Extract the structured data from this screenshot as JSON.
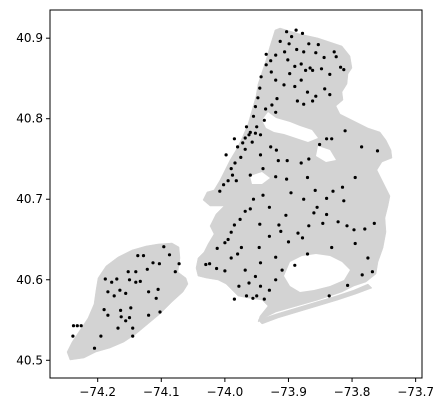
{
  "colors": {
    "land": "#d3d3d3",
    "water": "#ffffff",
    "point": "#000000",
    "frame": "#000000",
    "background": "#ffffff"
  },
  "chart_data": {
    "type": "scatter",
    "title": "",
    "xlabel": "",
    "ylabel": "",
    "xlim": [
      -74.275,
      -73.69
    ],
    "ylim": [
      40.478,
      40.935
    ],
    "grid": false,
    "legend": "none",
    "x_ticks": [
      {
        "value": -74.2,
        "label": "−74.2"
      },
      {
        "value": -74.1,
        "label": "−74.1"
      },
      {
        "value": -74.0,
        "label": "−74.0"
      },
      {
        "value": -73.9,
        "label": "−73.9"
      },
      {
        "value": -73.8,
        "label": "−73.8"
      },
      {
        "value": -73.7,
        "label": "−73.7"
      }
    ],
    "y_ticks": [
      {
        "value": 40.5,
        "label": "40.5"
      },
      {
        "value": 40.6,
        "label": "40.6"
      },
      {
        "value": 40.7,
        "label": "40.7"
      },
      {
        "value": 40.8,
        "label": "40.8"
      },
      {
        "value": 40.9,
        "label": "40.9"
      }
    ],
    "points": [
      [
        -74.238,
        40.543
      ],
      [
        -74.232,
        40.543
      ],
      [
        -74.226,
        40.543
      ],
      [
        -74.239,
        40.53
      ],
      [
        -74.205,
        40.515
      ],
      [
        -74.188,
        40.601
      ],
      [
        -74.178,
        40.597
      ],
      [
        -74.17,
        40.601
      ],
      [
        -74.152,
        40.61
      ],
      [
        -74.14,
        40.61
      ],
      [
        -74.137,
        40.63
      ],
      [
        -74.128,
        40.63
      ],
      [
        -74.122,
        40.613
      ],
      [
        -74.113,
        40.621
      ],
      [
        -74.103,
        40.62
      ],
      [
        -74.096,
        40.641
      ],
      [
        -74.087,
        40.631
      ],
      [
        -74.078,
        40.61
      ],
      [
        -74.072,
        40.62
      ],
      [
        -74.15,
        40.6
      ],
      [
        -74.165,
        40.587
      ],
      [
        -74.156,
        40.583
      ],
      [
        -74.14,
        40.597
      ],
      [
        -74.133,
        40.598
      ],
      [
        -74.12,
        40.585
      ],
      [
        -74.108,
        40.577
      ],
      [
        -74.105,
        40.588
      ],
      [
        -74.184,
        40.585
      ],
      [
        -74.174,
        40.58
      ],
      [
        -74.164,
        40.562
      ],
      [
        -74.184,
        40.556
      ],
      [
        -74.156,
        40.549
      ],
      [
        -74.15,
        40.553
      ],
      [
        -74.145,
        40.54
      ],
      [
        -74.145,
        40.53
      ],
      [
        -74.168,
        40.54
      ],
      [
        -74.148,
        40.565
      ],
      [
        -74.19,
        40.563
      ],
      [
        -74.195,
        40.53
      ],
      [
        -74.12,
        40.556
      ],
      [
        -74.102,
        40.56
      ],
      [
        -74.163,
        40.554
      ],
      [
        -73.903,
        40.908
      ],
      [
        -73.895,
        40.902
      ],
      [
        -73.888,
        40.91
      ],
      [
        -73.878,
        40.906
      ],
      [
        -73.868,
        40.893
      ],
      [
        -73.876,
        40.883
      ],
      [
        -73.887,
        40.886
      ],
      [
        -73.899,
        40.893
      ],
      [
        -73.913,
        40.896
      ],
      [
        -73.906,
        40.883
      ],
      [
        -73.901,
        40.873
      ],
      [
        -73.89,
        40.865
      ],
      [
        -73.88,
        40.868
      ],
      [
        -73.866,
        40.863
      ],
      [
        -73.857,
        40.882
      ],
      [
        -73.853,
        40.892
      ],
      [
        -73.844,
        40.876
      ],
      [
        -73.828,
        40.883
      ],
      [
        -73.825,
        40.877
      ],
      [
        -73.818,
        40.864
      ],
      [
        -73.813,
        40.861
      ],
      [
        -73.835,
        40.855
      ],
      [
        -73.848,
        40.862
      ],
      [
        -73.862,
        40.86
      ],
      [
        -73.873,
        40.86
      ],
      [
        -73.88,
        40.848
      ],
      [
        -73.898,
        40.856
      ],
      [
        -73.89,
        40.84
      ],
      [
        -73.87,
        40.833
      ],
      [
        -73.857,
        40.828
      ],
      [
        -73.843,
        40.837
      ],
      [
        -73.835,
        40.83
      ],
      [
        -73.862,
        40.822
      ],
      [
        -73.876,
        40.818
      ],
      [
        -73.886,
        40.822
      ],
      [
        -73.907,
        40.842
      ],
      [
        -73.92,
        40.848
      ],
      [
        -73.927,
        40.858
      ],
      [
        -73.935,
        40.867
      ],
      [
        -73.928,
        40.872
      ],
      [
        -73.92,
        40.879
      ],
      [
        -73.935,
        40.88
      ],
      [
        -73.943,
        40.852
      ],
      [
        -73.945,
        40.838
      ],
      [
        -73.948,
        40.826
      ],
      [
        -73.952,
        40.815
      ],
      [
        -73.955,
        40.803
      ],
      [
        -73.95,
        40.79
      ],
      [
        -73.952,
        40.782
      ],
      [
        -73.96,
        40.783
      ],
      [
        -73.944,
        40.78
      ],
      [
        -73.938,
        40.798
      ],
      [
        -73.936,
        40.812
      ],
      [
        -73.926,
        40.817
      ],
      [
        -73.92,
        40.808
      ],
      [
        -73.918,
        40.825
      ],
      [
        -73.962,
        40.78
      ],
      [
        -73.968,
        40.776
      ],
      [
        -73.972,
        40.77
      ],
      [
        -73.98,
        40.765
      ],
      [
        -73.975,
        40.752
      ],
      [
        -73.984,
        40.745
      ],
      [
        -73.99,
        40.738
      ],
      [
        -73.988,
        40.73
      ],
      [
        -73.995,
        40.723
      ],
      [
        -74.002,
        40.718
      ],
      [
        -74.008,
        40.71
      ],
      [
        -73.998,
        40.755
      ],
      [
        -73.985,
        40.775
      ],
      [
        -73.966,
        40.79
      ],
      [
        -73.957,
        40.771
      ],
      [
        -73.968,
        40.762
      ],
      [
        -73.944,
        40.755
      ],
      [
        -73.928,
        40.765
      ],
      [
        -73.919,
        40.761
      ],
      [
        -73.916,
        40.748
      ],
      [
        -73.902,
        40.748
      ],
      [
        -73.88,
        40.745
      ],
      [
        -73.868,
        40.75
      ],
      [
        -73.851,
        40.768
      ],
      [
        -73.84,
        40.775
      ],
      [
        -73.832,
        40.775
      ],
      [
        -73.811,
        40.785
      ],
      [
        -73.785,
        40.765
      ],
      [
        -73.76,
        40.76
      ],
      [
        -73.795,
        40.727
      ],
      [
        -73.815,
        40.715
      ],
      [
        -73.83,
        40.71
      ],
      [
        -73.858,
        40.711
      ],
      [
        -73.87,
        40.727
      ],
      [
        -73.903,
        40.725
      ],
      [
        -73.92,
        40.728
      ],
      [
        -73.94,
        40.705
      ],
      [
        -73.955,
        40.7
      ],
      [
        -73.968,
        40.685
      ],
      [
        -73.976,
        40.675
      ],
      [
        -73.985,
        40.668
      ],
      [
        -73.99,
        40.659
      ],
      [
        -74.0,
        40.646
      ],
      [
        -74.012,
        40.639
      ],
      [
        -74.024,
        40.62
      ],
      [
        -74.03,
        40.619
      ],
      [
        -73.995,
        40.65
      ],
      [
        -73.96,
        40.688
      ],
      [
        -73.945,
        40.669
      ],
      [
        -73.93,
        40.654
      ],
      [
        -73.915,
        40.668
      ],
      [
        -73.904,
        40.68
      ],
      [
        -73.912,
        40.66
      ],
      [
        -73.9,
        40.647
      ],
      [
        -73.885,
        40.658
      ],
      [
        -73.878,
        40.652
      ],
      [
        -73.868,
        40.667
      ],
      [
        -73.86,
        40.683
      ],
      [
        -73.846,
        40.67
      ],
      [
        -73.84,
        40.681
      ],
      [
        -73.822,
        40.672
      ],
      [
        -73.808,
        40.667
      ],
      [
        -73.797,
        40.662
      ],
      [
        -73.78,
        40.663
      ],
      [
        -73.765,
        40.67
      ],
      [
        -73.795,
        40.645
      ],
      [
        -73.775,
        40.627
      ],
      [
        -73.768,
        40.61
      ],
      [
        -73.784,
        40.606
      ],
      [
        -73.807,
        40.593
      ],
      [
        -73.836,
        40.58
      ],
      [
        -73.91,
        40.612
      ],
      [
        -73.92,
        40.628
      ],
      [
        -73.944,
        40.621
      ],
      [
        -73.952,
        40.604
      ],
      [
        -73.962,
        40.596
      ],
      [
        -73.966,
        40.58
      ],
      [
        -73.978,
        40.592
      ],
      [
        -73.968,
        40.612
      ],
      [
        -73.98,
        40.632
      ],
      [
        -73.99,
        40.627
      ],
      [
        -74.0,
        40.611
      ],
      [
        -74.013,
        40.614
      ],
      [
        -73.985,
        40.576
      ],
      [
        -73.95,
        40.58
      ],
      [
        -73.938,
        40.576
      ],
      [
        -73.93,
        40.587
      ],
      [
        -73.944,
        40.592
      ],
      [
        -73.956,
        40.577
      ],
      [
        -73.84,
        40.701
      ],
      [
        -73.813,
        40.698
      ],
      [
        -73.93,
        40.69
      ],
      [
        -73.946,
        40.64
      ],
      [
        -73.974,
        40.64
      ],
      [
        -73.92,
        40.6
      ],
      [
        -73.89,
        40.618
      ],
      [
        -73.96,
        40.73
      ],
      [
        -73.982,
        40.723
      ],
      [
        -73.94,
        40.738
      ],
      [
        -73.896,
        40.708
      ],
      [
        -73.876,
        40.7
      ],
      [
        -73.855,
        40.69
      ],
      [
        -73.87,
        40.632
      ],
      [
        -73.832,
        40.64
      ]
    ]
  }
}
